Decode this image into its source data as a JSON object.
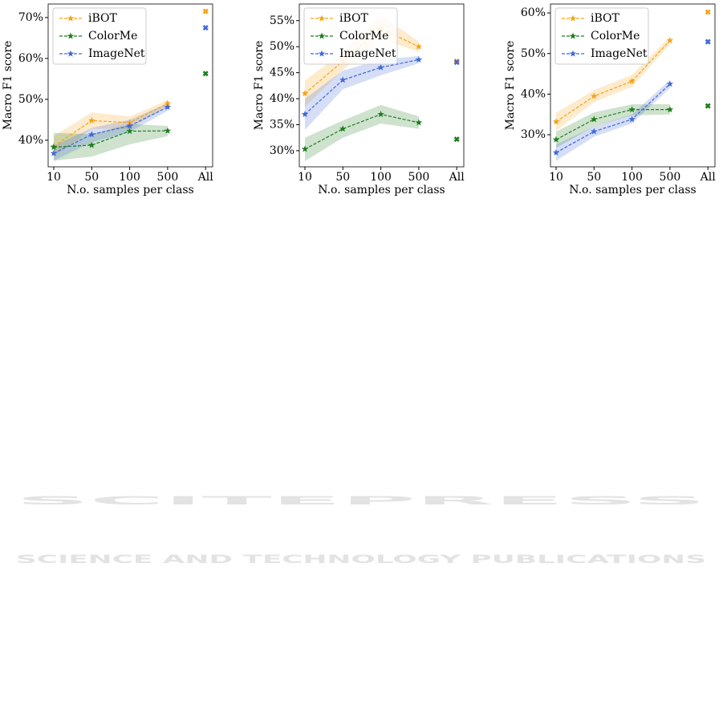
{
  "chart_data": [
    {
      "type": "line",
      "xlabel": "N.o. samples per class",
      "ylabel": "Macro F1 score",
      "categories": [
        "10",
        "50",
        "100",
        "500"
      ],
      "extra_category": "All",
      "ylim": [
        33.5,
        73.3
      ],
      "yticks": [
        {
          "value": 40,
          "label": "40%"
        },
        {
          "value": 50,
          "label": "50%"
        },
        {
          "value": 60,
          "label": "60%"
        },
        {
          "value": 70,
          "label": "70%"
        }
      ],
      "series": [
        {
          "name": "iBOT",
          "color": "#f5a31a",
          "values": [
            38.5,
            44.8,
            44.3,
            49.0
          ],
          "band_low": [
            36.0,
            42.8,
            42.8,
            48.2
          ],
          "band_high": [
            41.0,
            46.8,
            45.8,
            49.8
          ],
          "all_value": 71.5
        },
        {
          "name": "ColorMe",
          "color": "#1e7d1e",
          "values": [
            38.3,
            38.8,
            42.2,
            42.3
          ],
          "band_low": [
            35.0,
            36.0,
            39.0,
            41.0
          ],
          "band_high": [
            41.8,
            41.5,
            44.0,
            43.5
          ],
          "all_value": 56.3
        },
        {
          "name": "ImageNet",
          "color": "#4169d8",
          "values": [
            36.8,
            41.4,
            43.5,
            48.1
          ],
          "band_low": [
            35.0,
            39.5,
            42.0,
            47.2
          ],
          "band_high": [
            38.6,
            43.0,
            45.0,
            49.0
          ],
          "all_value": 67.5
        }
      ]
    },
    {
      "type": "line",
      "xlabel": "N.o. samples per class",
      "ylabel": "Macro F1 score",
      "categories": [
        "10",
        "50",
        "100",
        "500"
      ],
      "extra_category": "All",
      "ylim": [
        26.9,
        58.2
      ],
      "yticks": [
        {
          "value": 30,
          "label": "30%"
        },
        {
          "value": 35,
          "label": "35%"
        },
        {
          "value": 40,
          "label": "40%"
        },
        {
          "value": 45,
          "label": "45%"
        },
        {
          "value": 50,
          "label": "50%"
        },
        {
          "value": 55,
          "label": "55%"
        }
      ],
      "series": [
        {
          "name": "iBOT",
          "color": "#f5a31a",
          "values": [
            41.0,
            47.2,
            53.5,
            50.0
          ],
          "band_low": [
            38.5,
            45.5,
            51.5,
            49.0
          ],
          "band_high": [
            43.5,
            49.0,
            56.0,
            51.0
          ],
          "all_value": 47.2
        },
        {
          "name": "ColorMe",
          "color": "#1e7d1e",
          "values": [
            30.3,
            34.2,
            37.0,
            35.4
          ],
          "band_low": [
            28.0,
            32.5,
            35.2,
            34.2
          ],
          "band_high": [
            32.5,
            35.8,
            38.8,
            36.6
          ],
          "all_value": 32.2
        },
        {
          "name": "ImageNet",
          "color": "#4169d8",
          "values": [
            37.0,
            43.6,
            46.0,
            47.5
          ],
          "band_low": [
            34.0,
            41.8,
            44.5,
            46.8
          ],
          "band_high": [
            40.0,
            45.4,
            47.5,
            48.2
          ],
          "all_value": 47.0
        }
      ]
    },
    {
      "type": "line",
      "xlabel": "N.o. samples per class",
      "ylabel": "Macro F1 score",
      "categories": [
        "10",
        "50",
        "100",
        "500"
      ],
      "extra_category": "All",
      "ylim": [
        22.1,
        62.2
      ],
      "yticks": [
        {
          "value": 30,
          "label": "30%"
        },
        {
          "value": 40,
          "label": "40%"
        },
        {
          "value": 50,
          "label": "50%"
        },
        {
          "value": 60,
          "label": "60%"
        }
      ],
      "series": [
        {
          "name": "iBOT",
          "color": "#f5a31a",
          "values": [
            33.2,
            39.5,
            43.2,
            53.2
          ],
          "band_low": [
            31.0,
            38.0,
            41.8,
            52.3
          ],
          "band_high": [
            35.4,
            41.0,
            44.8,
            54.2
          ],
          "all_value": 60.2
        },
        {
          "name": "ColorMe",
          "color": "#1e7d1e",
          "values": [
            28.8,
            33.8,
            36.2,
            36.2
          ],
          "band_low": [
            26.8,
            32.0,
            34.8,
            35.0
          ],
          "band_high": [
            30.8,
            35.5,
            37.5,
            37.5
          ],
          "all_value": 37.1
        },
        {
          "name": "ImageNet",
          "color": "#4169d8",
          "values": [
            25.6,
            30.8,
            33.8,
            42.5
          ],
          "band_low": [
            23.6,
            29.5,
            32.8,
            41.5
          ],
          "band_high": [
            27.6,
            32.0,
            35.0,
            43.5
          ],
          "all_value": 52.9
        }
      ]
    }
  ],
  "watermark": {
    "title": "SCITEPRESS",
    "subtitle": "SCIENCE AND TECHNOLOGY PUBLICATIONS"
  }
}
